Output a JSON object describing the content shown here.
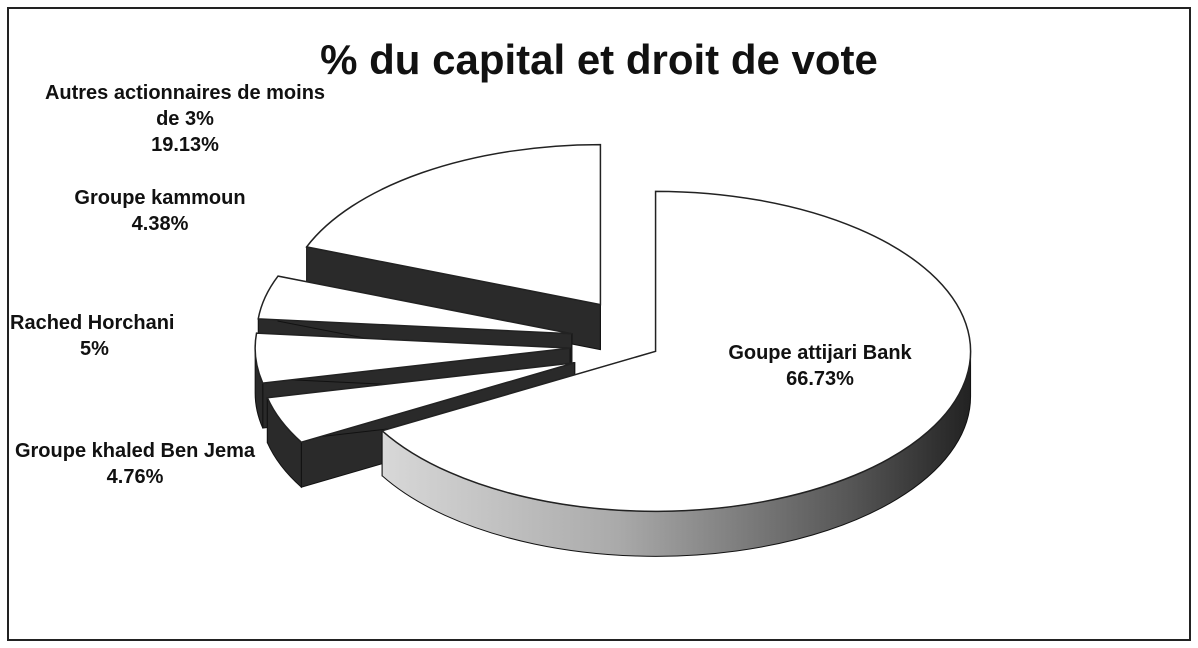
{
  "chart_data": {
    "type": "pie",
    "title": "% du capital et droit de vote",
    "categories": [
      "Goupe attijari Bank",
      "Groupe khaled Ben Jema",
      "Rached Horchani",
      "Groupe kammoun",
      "Autres actionnaires de moins de 3%"
    ],
    "values": [
      66.73,
      4.76,
      5,
      4.38,
      19.13
    ],
    "value_labels": [
      "66.73%",
      "4.76%",
      "5%",
      "4.38%",
      "19.13%"
    ],
    "color": "#ffffff"
  }
}
